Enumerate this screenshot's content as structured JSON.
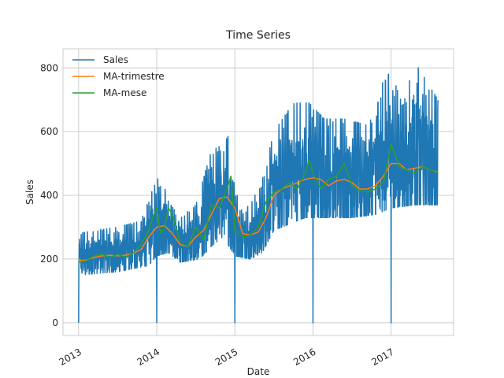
{
  "chart_data": {
    "type": "line",
    "title": "Time Series",
    "xlabel": "Date",
    "ylabel": "Sales",
    "xlim": [
      2012.8,
      2017.8
    ],
    "ylim": [
      -40,
      860
    ],
    "x_ticks": [
      2013,
      2014,
      2015,
      2016,
      2017
    ],
    "x_tick_labels": [
      "2013",
      "2014",
      "2015",
      "2016",
      "2017"
    ],
    "y_ticks": [
      0,
      200,
      400,
      600,
      800
    ],
    "y_tick_labels": [
      "0",
      "200",
      "400",
      "600",
      "800"
    ],
    "grid": true,
    "legend_position": "top-left",
    "series": [
      {
        "name": "Sales",
        "color": "#1f77b4",
        "x_range": [
          2013.0,
          2017.6
        ],
        "envelope_low": [
          [
            2013.0,
            150
          ],
          [
            2013.5,
            160
          ],
          [
            2013.9,
            180
          ],
          [
            2014.0,
            210
          ],
          [
            2014.15,
            220
          ],
          [
            2014.3,
            190
          ],
          [
            2014.55,
            200
          ],
          [
            2014.7,
            240
          ],
          [
            2014.85,
            270
          ],
          [
            2015.0,
            210
          ],
          [
            2015.2,
            200
          ],
          [
            2015.35,
            220
          ],
          [
            2015.5,
            290
          ],
          [
            2015.7,
            310
          ],
          [
            2015.9,
            330
          ],
          [
            2016.2,
            330
          ],
          [
            2016.5,
            330
          ],
          [
            2016.8,
            340
          ],
          [
            2017.0,
            360
          ],
          [
            2017.3,
            370
          ],
          [
            2017.6,
            370
          ]
        ],
        "envelope_high": [
          [
            2013.0,
            280
          ],
          [
            2013.2,
            290
          ],
          [
            2013.5,
            300
          ],
          [
            2013.8,
            320
          ],
          [
            2013.95,
            420
          ],
          [
            2014.05,
            470
          ],
          [
            2014.15,
            380
          ],
          [
            2014.3,
            330
          ],
          [
            2014.5,
            370
          ],
          [
            2014.7,
            540
          ],
          [
            2014.85,
            560
          ],
          [
            2014.95,
            600
          ],
          [
            2015.05,
            350
          ],
          [
            2015.2,
            370
          ],
          [
            2015.35,
            450
          ],
          [
            2015.5,
            600
          ],
          [
            2015.75,
            690
          ],
          [
            2015.95,
            690
          ],
          [
            2016.15,
            640
          ],
          [
            2016.4,
            640
          ],
          [
            2016.7,
            620
          ],
          [
            2016.9,
            760
          ],
          [
            2017.0,
            790
          ],
          [
            2017.15,
            680
          ],
          [
            2017.3,
            820
          ],
          [
            2017.45,
            760
          ],
          [
            2017.6,
            700
          ]
        ],
        "dips_to_zero": [
          2013.0,
          2014.0,
          2015.0,
          2016.0,
          2017.0
        ]
      },
      {
        "name": "MA-trimestre",
        "color": "#ff7f0e",
        "x": [
          2013.0,
          2013.1,
          2013.2,
          2013.3,
          2013.4,
          2013.5,
          2013.6,
          2013.7,
          2013.8,
          2013.9,
          2014.0,
          2014.1,
          2014.2,
          2014.3,
          2014.4,
          2014.5,
          2014.6,
          2014.7,
          2014.8,
          2014.9,
          2015.0,
          2015.1,
          2015.2,
          2015.3,
          2015.4,
          2015.5,
          2015.6,
          2015.7,
          2015.8,
          2015.9,
          2016.0,
          2016.1,
          2016.2,
          2016.3,
          2016.4,
          2016.5,
          2016.6,
          2016.7,
          2016.8,
          2016.9,
          2017.0,
          2017.1,
          2017.2,
          2017.3,
          2017.4,
          2017.5,
          2017.6
        ],
        "values": [
          195,
          197,
          205,
          210,
          212,
          210,
          212,
          218,
          230,
          270,
          300,
          305,
          280,
          245,
          240,
          270,
          290,
          340,
          390,
          395,
          360,
          280,
          275,
          285,
          330,
          400,
          420,
          430,
          440,
          450,
          455,
          450,
          430,
          445,
          450,
          440,
          420,
          420,
          430,
          460,
          500,
          500,
          480,
          485,
          490,
          480,
          472
        ]
      },
      {
        "name": "MA-mese",
        "color": "#2ca02c",
        "x": [
          2013.0,
          2013.1,
          2013.2,
          2013.3,
          2013.4,
          2013.5,
          2013.6,
          2013.7,
          2013.8,
          2013.9,
          2013.95,
          2014.0,
          2014.05,
          2014.1,
          2014.15,
          2014.2,
          2014.3,
          2014.4,
          2014.5,
          2014.6,
          2014.7,
          2014.8,
          2014.9,
          2014.95,
          2015.0,
          2015.1,
          2015.2,
          2015.3,
          2015.4,
          2015.5,
          2015.6,
          2015.7,
          2015.8,
          2015.9,
          2015.95,
          2016.0,
          2016.1,
          2016.2,
          2016.3,
          2016.4,
          2016.5,
          2016.6,
          2016.7,
          2016.8,
          2016.9,
          2016.95,
          2017.0,
          2017.05,
          2017.1,
          2017.2,
          2017.3,
          2017.4,
          2017.5,
          2017.6
        ],
        "values": [
          190,
          195,
          210,
          215,
          205,
          215,
          205,
          220,
          245,
          290,
          330,
          360,
          280,
          300,
          360,
          340,
          250,
          240,
          300,
          260,
          370,
          360,
          420,
          460,
          290,
          270,
          275,
          300,
          380,
          410,
          420,
          440,
          420,
          470,
          510,
          470,
          420,
          450,
          460,
          500,
          430,
          415,
          410,
          420,
          440,
          500,
          560,
          530,
          490,
          480,
          470,
          490,
          480,
          470
        ]
      }
    ]
  }
}
